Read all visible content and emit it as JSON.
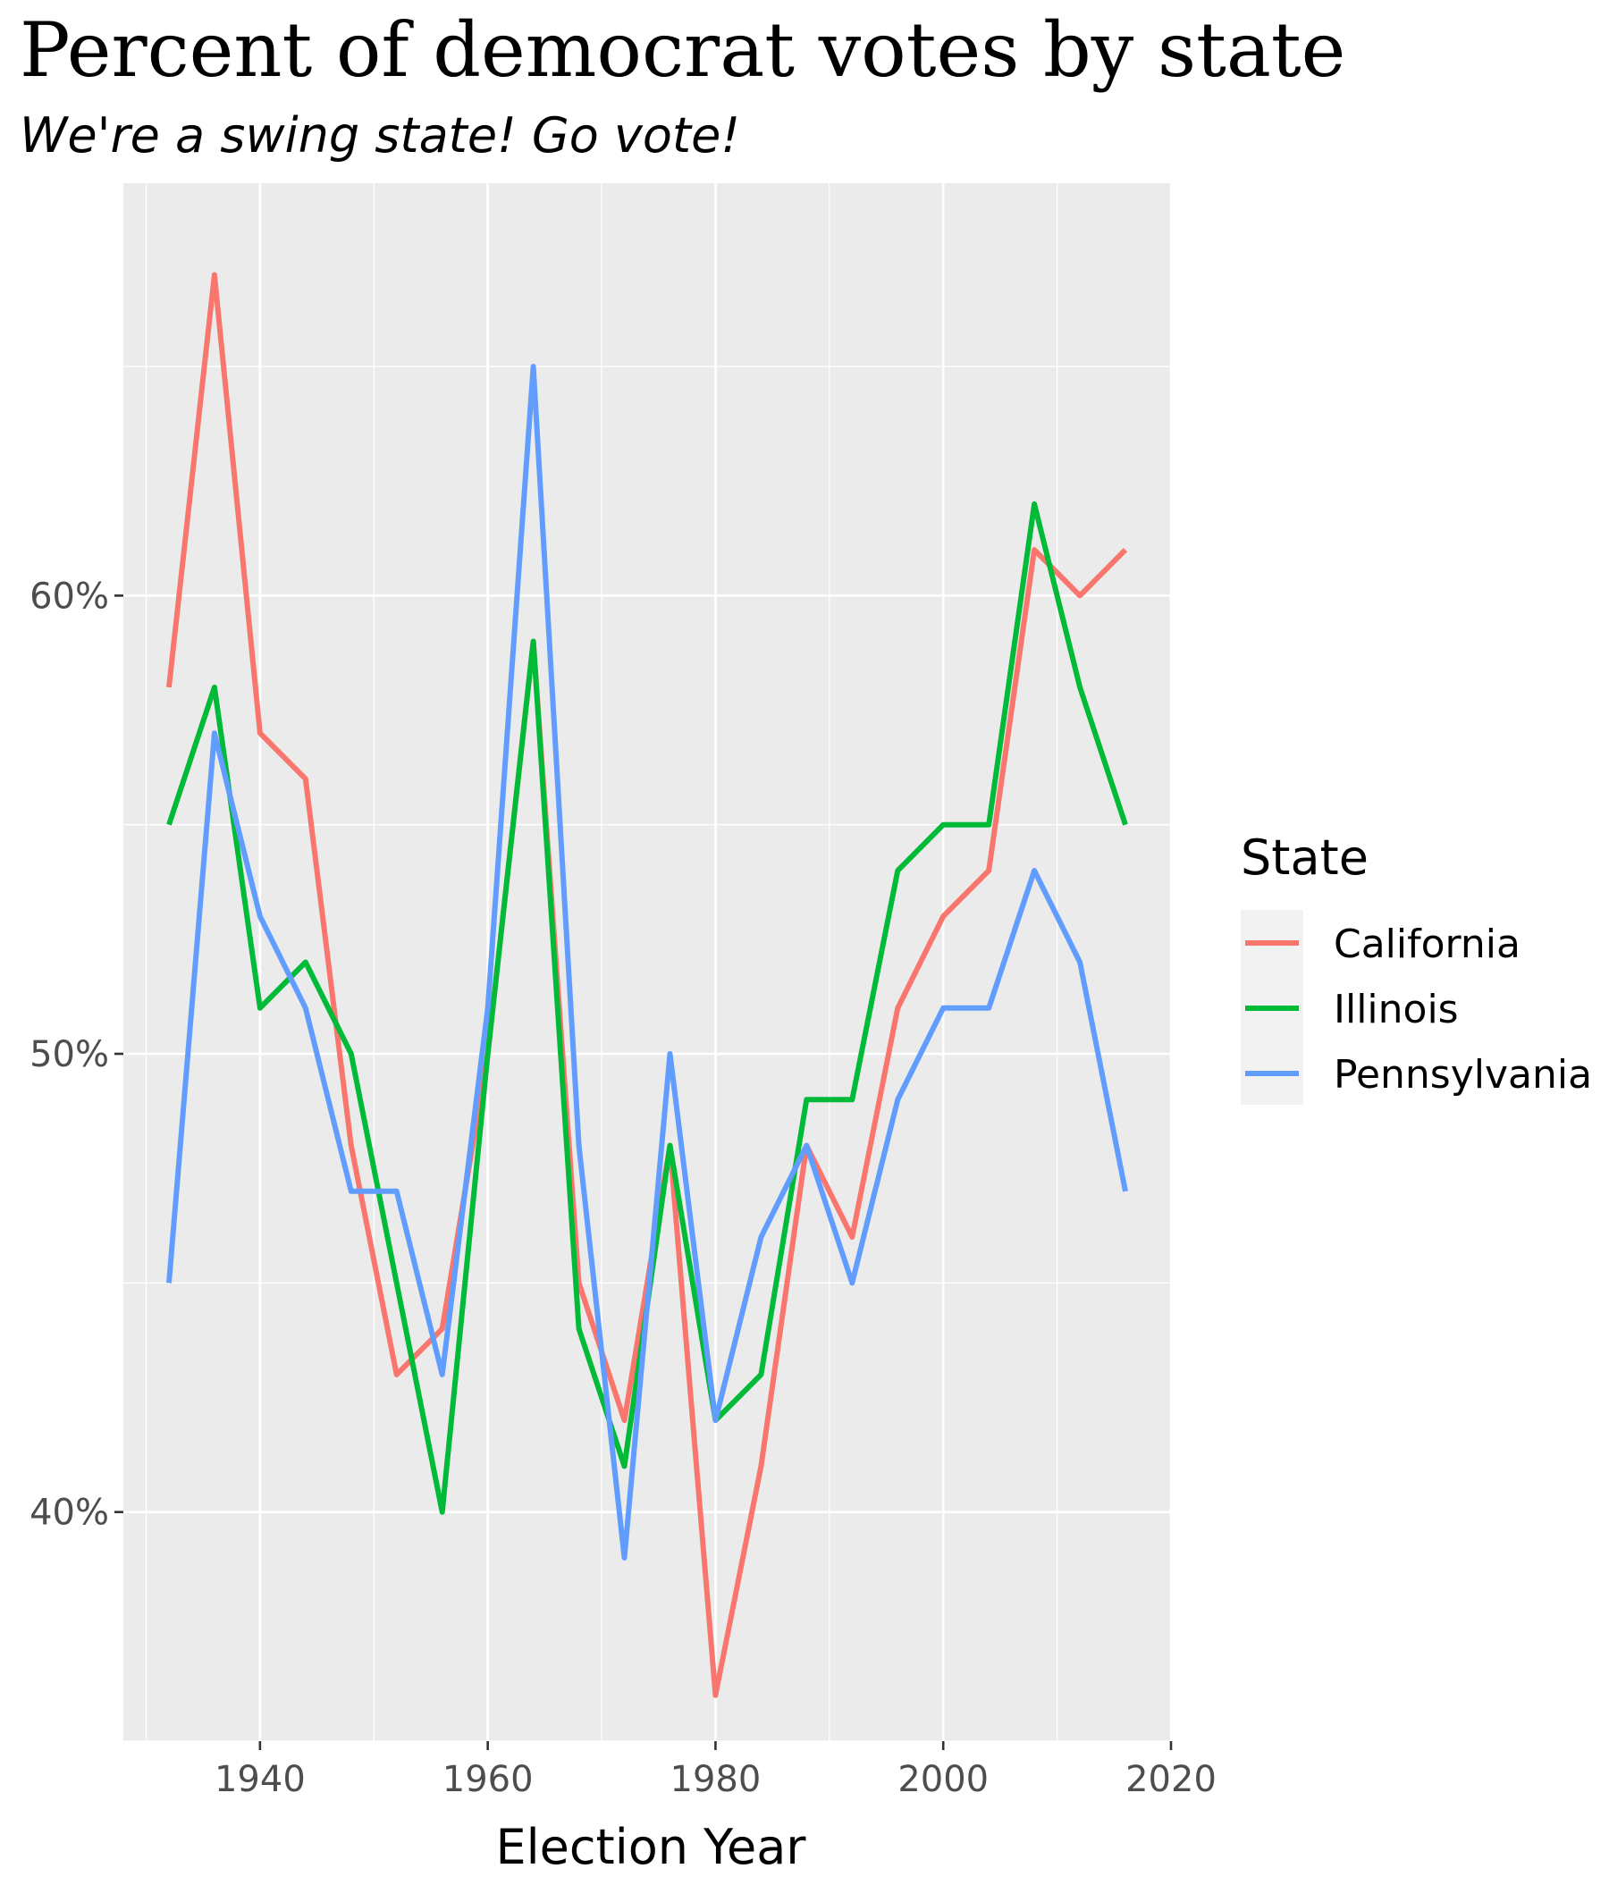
{
  "chart_data": {
    "type": "line",
    "title": "Percent of democrat votes by state",
    "subtitle": "We're a swing state! Go vote!",
    "xlabel": "Election Year",
    "ylabel": "",
    "xlim": [
      1928,
      2020
    ],
    "ylim": [
      0.35,
      0.69
    ],
    "x_ticks": [
      1940,
      1960,
      1980,
      2000,
      2020
    ],
    "x_tick_labels": [
      "1940",
      "1960",
      "1980",
      "2000",
      "2020"
    ],
    "y_ticks": [
      0.4,
      0.5,
      0.6
    ],
    "y_tick_labels": [
      "40%",
      "50%",
      "60%"
    ],
    "grid": true,
    "legend": {
      "title": "State",
      "position": "right"
    },
    "x": [
      1932,
      1936,
      1940,
      1944,
      1948,
      1952,
      1956,
      1960,
      1964,
      1968,
      1972,
      1976,
      1980,
      1984,
      1988,
      1992,
      1996,
      2000,
      2004,
      2008,
      2012,
      2016
    ],
    "series": [
      {
        "name": "California",
        "color": "#F8766D",
        "values": [
          0.58,
          0.67,
          0.57,
          0.56,
          0.48,
          0.43,
          0.44,
          0.5,
          0.59,
          0.45,
          0.42,
          0.48,
          0.36,
          0.41,
          0.48,
          0.46,
          0.51,
          0.53,
          0.54,
          0.61,
          0.6,
          0.61
        ]
      },
      {
        "name": "Illinois",
        "color": "#00BA38",
        "values": [
          0.55,
          0.58,
          0.51,
          0.52,
          0.5,
          0.45,
          0.4,
          0.5,
          0.59,
          0.44,
          0.41,
          0.48,
          0.42,
          0.43,
          0.49,
          0.49,
          0.54,
          0.55,
          0.55,
          0.62,
          0.58,
          0.55
        ]
      },
      {
        "name": "Pennsylvania",
        "color": "#619CFF",
        "values": [
          0.45,
          0.57,
          0.53,
          0.51,
          0.47,
          0.47,
          0.43,
          0.51,
          0.65,
          0.48,
          0.39,
          0.5,
          0.42,
          0.46,
          0.48,
          0.45,
          0.49,
          0.51,
          0.51,
          0.54,
          0.52,
          0.47
        ]
      }
    ]
  }
}
